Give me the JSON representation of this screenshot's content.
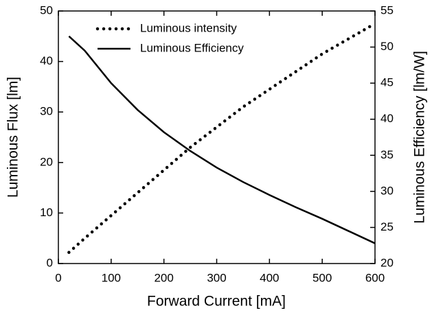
{
  "chart_data": {
    "type": "line",
    "xlabel": "Forward Current [mA]",
    "ylabel": "Luminous Flux [lm]",
    "y2label": "Luminous Efficiency [lm/W]",
    "x": [
      20,
      50,
      100,
      150,
      200,
      250,
      300,
      350,
      400,
      450,
      500,
      550,
      600
    ],
    "series": [
      {
        "name": "Luminous intensity",
        "color": "#000000",
        "style": "dotted",
        "values": [
          2.2,
          5,
          9.5,
          14,
          18.5,
          23,
          27,
          31,
          34.5,
          38,
          41.5,
          44.5,
          47.5
        ]
      },
      {
        "name": "Luminous Efficiency",
        "color": "#000000",
        "style": "solid",
        "axis": "y2",
        "values": [
          51.5,
          49.5,
          45,
          41.3,
          38.2,
          35.6,
          33.3,
          31.3,
          29.5,
          27.8,
          26.2,
          24.5,
          22.8
        ]
      }
    ],
    "xlim": [
      0,
      600
    ],
    "xticks": [
      0,
      100,
      200,
      300,
      400,
      500,
      600
    ],
    "ylim": [
      0,
      50
    ],
    "yticks": [
      0,
      10,
      20,
      30,
      40,
      50
    ],
    "y2lim": [
      20,
      55
    ],
    "y2ticks": [
      20,
      25,
      30,
      35,
      40,
      45,
      50,
      55
    ],
    "legend": "upper left",
    "grid": false
  }
}
